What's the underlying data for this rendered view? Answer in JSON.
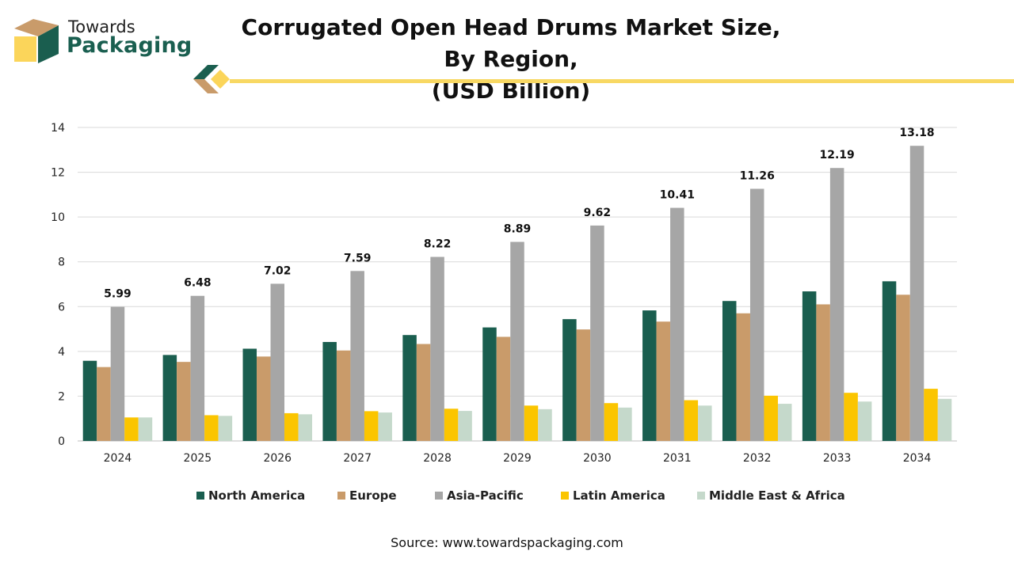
{
  "brand": {
    "line1": "Towards",
    "line2": "Packaging"
  },
  "title_line1": "Corrugated Open Head Drums Market Size, By Region,",
  "title_line2": "(USD Billion)",
  "source": "Source: www.towardspackaging.com",
  "colors": {
    "north_america": "#1a5e4f",
    "europe": "#c99b6a",
    "asia_pacific": "#a6a6a6",
    "latin_america": "#fbc500",
    "middle_east_africa": "#c5d9cb",
    "accent": "#f8d863"
  },
  "chart_data": {
    "type": "bar",
    "title": "Corrugated Open Head Drums Market Size, By Region, (USD Billion)",
    "xlabel": "",
    "ylabel": "",
    "ylim": [
      0,
      14
    ],
    "yticks": [
      0,
      2,
      4,
      6,
      8,
      10,
      12,
      14
    ],
    "grid": true,
    "legend_position": "bottom",
    "categories": [
      "2024",
      "2025",
      "2026",
      "2027",
      "2028",
      "2029",
      "2030",
      "2031",
      "2032",
      "2033",
      "2034"
    ],
    "series": [
      {
        "name": "North America",
        "color": "#1a5e4f",
        "values": [
          3.58,
          3.84,
          4.12,
          4.42,
          4.73,
          5.07,
          5.44,
          5.83,
          6.25,
          6.68,
          7.13
        ]
      },
      {
        "name": "Europe",
        "color": "#c99b6a",
        "values": [
          3.3,
          3.53,
          3.77,
          4.04,
          4.33,
          4.65,
          4.98,
          5.33,
          5.7,
          6.1,
          6.53
        ]
      },
      {
        "name": "Asia-Pacific",
        "color": "#a6a6a6",
        "values": [
          5.99,
          6.48,
          7.02,
          7.59,
          8.22,
          8.89,
          9.62,
          10.41,
          11.26,
          12.19,
          13.18
        ]
      },
      {
        "name": "Latin America",
        "color": "#fbc500",
        "values": [
          1.05,
          1.15,
          1.24,
          1.33,
          1.44,
          1.58,
          1.69,
          1.82,
          2.02,
          2.15,
          2.33
        ]
      },
      {
        "name": "Middle East & Africa",
        "color": "#c5d9cb",
        "values": [
          1.05,
          1.12,
          1.19,
          1.27,
          1.34,
          1.42,
          1.49,
          1.58,
          1.66,
          1.76,
          1.88
        ]
      }
    ],
    "data_labels": {
      "series": "Asia-Pacific",
      "labels": [
        "5.99",
        "6.48",
        "7.02",
        "7.59",
        "8.22",
        "8.89",
        "9.62",
        "10.41",
        "11.26",
        "12.19",
        "13.18"
      ]
    }
  }
}
